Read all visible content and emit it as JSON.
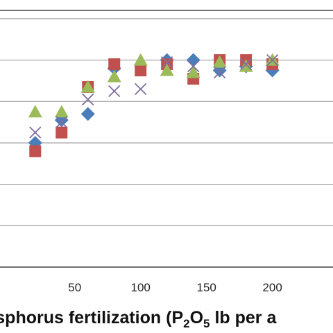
{
  "chart_data": {
    "type": "scatter",
    "xlabel": "osphorus fertilization (P",
    "xlabel_sub1": "2",
    "xlabel_mid": "O",
    "xlabel_sub2": "5",
    "xlabel_end": " lb per a",
    "x_ticks": [
      "50",
      "100",
      "150",
      "200"
    ],
    "x_tick_values": [
      50,
      100,
      150,
      200
    ],
    "xlim": [
      -12,
      246
    ],
    "ylim": [
      0,
      6.2
    ],
    "y_gridlines": [
      1,
      2,
      3,
      4,
      5,
      6
    ],
    "grid": true,
    "series": [
      {
        "marker": "diamond",
        "color": "#4a7ebb",
        "points": [
          [
            20,
            3.0
          ],
          [
            40,
            3.55
          ],
          [
            60,
            3.7
          ],
          [
            80,
            4.8
          ],
          [
            120,
            5.0
          ],
          [
            140,
            5.0
          ],
          [
            160,
            4.75
          ],
          [
            180,
            4.85
          ],
          [
            200,
            4.75
          ]
        ]
      },
      {
        "marker": "square",
        "color": "#c0504d",
        "points": [
          [
            20,
            2.8
          ],
          [
            40,
            3.25
          ],
          [
            60,
            4.35
          ],
          [
            80,
            4.9
          ],
          [
            100,
            4.75
          ],
          [
            120,
            4.9
          ],
          [
            140,
            4.55
          ],
          [
            160,
            5.0
          ],
          [
            180,
            5.0
          ],
          [
            200,
            4.9
          ]
        ]
      },
      {
        "marker": "triangle",
        "color": "#9bbb59",
        "points": [
          [
            20,
            3.75
          ],
          [
            40,
            3.75
          ],
          [
            60,
            4.35
          ],
          [
            80,
            4.6
          ],
          [
            100,
            5.0
          ],
          [
            120,
            4.75
          ],
          [
            140,
            4.7
          ],
          [
            160,
            4.95
          ],
          [
            180,
            4.85
          ],
          [
            200,
            5.0
          ]
        ]
      },
      {
        "marker": "x",
        "color": "#7f6e9e",
        "points": [
          [
            20,
            3.25
          ],
          [
            40,
            3.5
          ],
          [
            60,
            4.05
          ],
          [
            80,
            4.25
          ],
          [
            100,
            4.3
          ],
          [
            120,
            4.95
          ],
          [
            140,
            4.85
          ],
          [
            160,
            4.7
          ],
          [
            180,
            4.9
          ],
          [
            200,
            5.0
          ]
        ]
      }
    ]
  }
}
